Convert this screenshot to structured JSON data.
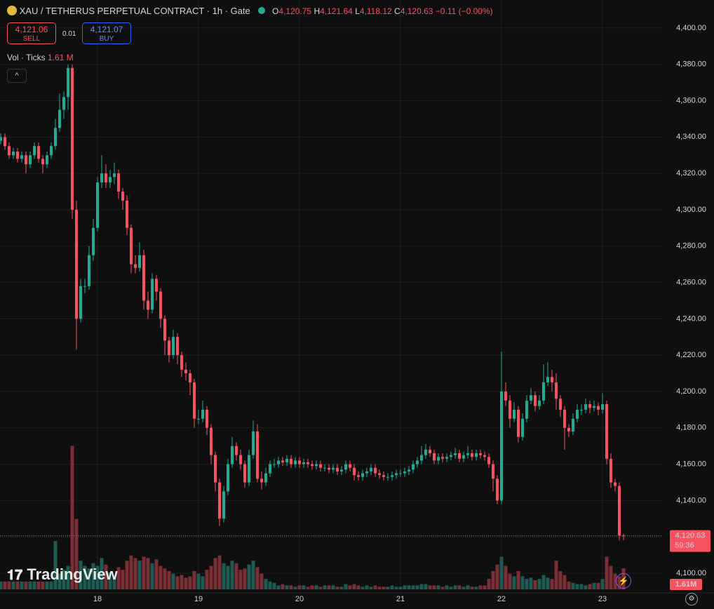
{
  "header": {
    "symbol": "XAU / TETHERUS PERPETUAL CONTRACT · 1h · Gate",
    "o_label": "O",
    "o": "4,120.75",
    "h_label": "H",
    "h": "4,121.64",
    "l_label": "L",
    "l": "4,118.12",
    "c_label": "C",
    "c": "4,120.63",
    "change": "−0.11 (−0.00%)",
    "sell_price": "4,121.06",
    "sell": "SELL",
    "spread": "0.01",
    "buy_price": "4,121.07",
    "buy": "BUY",
    "vol_label": "Vol · Ticks",
    "vol_value": "1.61 M",
    "last_price": "4,120.63",
    "countdown": "59:36",
    "last_volume": "1.61M",
    "logo": "TradingView"
  },
  "chart_data": {
    "type": "candlestick",
    "up_color": "#22ab94",
    "down_color": "#f7525f",
    "up_volume_color": "#1d5a53",
    "down_volume_color": "#7b2e33",
    "grid": true,
    "xlim": [
      -0.1667,
      157.3333
    ],
    "xticks": [
      {
        "value": 23,
        "label": "18"
      },
      {
        "value": 47,
        "label": "19"
      },
      {
        "value": 71,
        "label": "20"
      },
      {
        "value": 95,
        "label": "21"
      },
      {
        "value": 119,
        "label": "22"
      },
      {
        "value": 143,
        "label": "23"
      }
    ],
    "ylim": [
      4089.2,
      4415.4
    ],
    "yticks": [
      {
        "value": 4100,
        "label": "4,100.00"
      },
      {
        "value": 4120,
        "label": "4,120.00"
      },
      {
        "value": 4140,
        "label": "4,140.00"
      },
      {
        "value": 4160,
        "label": "4,160.00"
      },
      {
        "value": 4180,
        "label": "4,180.00"
      },
      {
        "value": 4200,
        "label": "4,200.00"
      },
      {
        "value": 4220,
        "label": "4,220.00"
      },
      {
        "value": 4240,
        "label": "4,240.00"
      },
      {
        "value": 4260,
        "label": "4,260.00"
      },
      {
        "value": 4280,
        "label": "4,280.00"
      },
      {
        "value": 4300,
        "label": "4,300.00"
      },
      {
        "value": 4320,
        "label": "4,320.00"
      },
      {
        "value": 4340,
        "label": "4,340.00"
      },
      {
        "value": 4360,
        "label": "4,360.00"
      },
      {
        "value": 4380,
        "label": "4,380.00"
      },
      {
        "value": 4400,
        "label": "4,400.00"
      }
    ],
    "ohlc": [
      [
        4338,
        4342,
        4336,
        4340
      ],
      [
        4340,
        4342,
        4333,
        4335
      ],
      [
        4335,
        4337,
        4328,
        4330
      ],
      [
        4330,
        4334,
        4328,
        4332
      ],
      [
        4332,
        4334,
        4326,
        4328
      ],
      [
        4328,
        4332,
        4326,
        4330
      ],
      [
        4330,
        4332,
        4320,
        4325
      ],
      [
        4325,
        4332,
        4323,
        4330
      ],
      [
        4330,
        4337,
        4328,
        4335
      ],
      [
        4335,
        4337,
        4326,
        4328
      ],
      [
        4328,
        4330,
        4320,
        4325
      ],
      [
        4325,
        4332,
        4323,
        4330
      ],
      [
        4330,
        4337,
        4328,
        4335
      ],
      [
        4335,
        4350,
        4333,
        4345
      ],
      [
        4345,
        4364,
        4343,
        4355
      ],
      [
        4355,
        4365,
        4350,
        4362
      ],
      [
        4362,
        4380,
        4355,
        4378
      ],
      [
        4378,
        4380,
        4295,
        4300
      ],
      [
        4300,
        4305,
        4223,
        4240
      ],
      [
        4240,
        4262,
        4238,
        4258
      ],
      [
        4258,
        4262,
        4254,
        4258
      ],
      [
        4258,
        4280,
        4256,
        4275
      ],
      [
        4275,
        4295,
        4272,
        4290
      ],
      [
        4290,
        4318,
        4288,
        4315
      ],
      [
        4315,
        4330,
        4312,
        4320
      ],
      [
        4320,
        4325,
        4312,
        4315
      ],
      [
        4315,
        4322,
        4312,
        4318
      ],
      [
        4318,
        4326,
        4314,
        4320
      ],
      [
        4320,
        4322,
        4306,
        4310
      ],
      [
        4310,
        4312,
        4300,
        4305
      ],
      [
        4305,
        4308,
        4286,
        4290
      ],
      [
        4290,
        4292,
        4265,
        4270
      ],
      [
        4270,
        4275,
        4265,
        4268
      ],
      [
        4268,
        4282,
        4266,
        4275
      ],
      [
        4275,
        4278,
        4245,
        4250
      ],
      [
        4250,
        4255,
        4240,
        4245
      ],
      [
        4245,
        4265,
        4243,
        4262
      ],
      [
        4262,
        4264,
        4250,
        4255
      ],
      [
        4255,
        4257,
        4235,
        4240
      ],
      [
        4240,
        4242,
        4220,
        4228
      ],
      [
        4228,
        4230,
        4216,
        4220
      ],
      [
        4220,
        4234,
        4218,
        4230
      ],
      [
        4230,
        4232,
        4215,
        4220
      ],
      [
        4220,
        4222,
        4208,
        4212
      ],
      [
        4212,
        4216,
        4206,
        4210
      ],
      [
        4210,
        4212,
        4198,
        4205
      ],
      [
        4205,
        4207,
        4180,
        4185
      ],
      [
        4185,
        4190,
        4182,
        4185
      ],
      [
        4185,
        4195,
        4183,
        4190
      ],
      [
        4190,
        4192,
        4176,
        4180
      ],
      [
        4180,
        4182,
        4160,
        4165
      ],
      [
        4165,
        4167,
        4145,
        4150
      ],
      [
        4150,
        4152,
        4126,
        4130
      ],
      [
        4130,
        4148,
        4128,
        4145
      ],
      [
        4145,
        4163,
        4143,
        4160
      ],
      [
        4160,
        4175,
        4158,
        4170
      ],
      [
        4170,
        4172,
        4162,
        4165
      ],
      [
        4165,
        4168,
        4157,
        4160
      ],
      [
        4160,
        4162,
        4147,
        4150
      ],
      [
        4150,
        4168,
        4148,
        4165
      ],
      [
        4165,
        4184,
        4163,
        4178
      ],
      [
        4178,
        4182,
        4150,
        4152
      ],
      [
        4152,
        4156,
        4146,
        4150
      ],
      [
        4150,
        4158,
        4148,
        4155
      ],
      [
        4155,
        4162,
        4153,
        4160
      ],
      [
        4160,
        4163,
        4158,
        4160
      ],
      [
        4160,
        4164,
        4158,
        4162
      ],
      [
        4162,
        4164,
        4159,
        4161
      ],
      [
        4161,
        4165,
        4159,
        4163
      ],
      [
        4163,
        4165,
        4158,
        4160
      ],
      [
        4160,
        4164,
        4158,
        4162
      ],
      [
        4162,
        4164,
        4158,
        4160
      ],
      [
        4160,
        4163,
        4158,
        4161
      ],
      [
        4161,
        4163,
        4158,
        4160
      ],
      [
        4160,
        4162,
        4157,
        4159
      ],
      [
        4159,
        4162,
        4157,
        4160
      ],
      [
        4160,
        4162,
        4156,
        4158
      ],
      [
        4158,
        4160,
        4156,
        4158
      ],
      [
        4158,
        4160,
        4155,
        4157
      ],
      [
        4157,
        4160,
        4155,
        4158
      ],
      [
        4158,
        4160,
        4154,
        4156
      ],
      [
        4156,
        4159,
        4154,
        4157
      ],
      [
        4157,
        4162,
        4155,
        4160
      ],
      [
        4160,
        4162,
        4156,
        4158
      ],
      [
        4158,
        4160,
        4151,
        4154
      ],
      [
        4154,
        4156,
        4151,
        4153
      ],
      [
        4153,
        4157,
        4151,
        4155
      ],
      [
        4155,
        4158,
        4153,
        4156
      ],
      [
        4156,
        4160,
        4154,
        4158
      ],
      [
        4158,
        4160,
        4153,
        4155
      ],
      [
        4155,
        4157,
        4152,
        4154
      ],
      [
        4154,
        4156,
        4151,
        4153
      ],
      [
        4153,
        4155,
        4151,
        4153
      ],
      [
        4153,
        4156,
        4151,
        4154
      ],
      [
        4154,
        4157,
        4152,
        4155
      ],
      [
        4155,
        4157,
        4153,
        4155
      ],
      [
        4155,
        4158,
        4153,
        4156
      ],
      [
        4156,
        4159,
        4154,
        4157
      ],
      [
        4157,
        4162,
        4155,
        4160
      ],
      [
        4160,
        4164,
        4158,
        4162
      ],
      [
        4162,
        4170,
        4160,
        4165
      ],
      [
        4165,
        4171,
        4163,
        4168
      ],
      [
        4168,
        4170,
        4164,
        4166
      ],
      [
        4166,
        4168,
        4160,
        4162
      ],
      [
        4162,
        4166,
        4160,
        4164
      ],
      [
        4164,
        4166,
        4161,
        4163
      ],
      [
        4163,
        4166,
        4161,
        4164
      ],
      [
        4164,
        4167,
        4162,
        4165
      ],
      [
        4165,
        4169,
        4163,
        4166
      ],
      [
        4166,
        4168,
        4161,
        4163
      ],
      [
        4163,
        4167,
        4161,
        4165
      ],
      [
        4165,
        4170,
        4163,
        4166
      ],
      [
        4166,
        4168,
        4162,
        4164
      ],
      [
        4164,
        4168,
        4162,
        4166
      ],
      [
        4166,
        4168,
        4163,
        4165
      ],
      [
        4165,
        4167,
        4162,
        4164
      ],
      [
        4164,
        4166,
        4158,
        4160
      ],
      [
        4160,
        4162,
        4145,
        4152
      ],
      [
        4152,
        4154,
        4138,
        4140
      ],
      [
        4140,
        4222,
        4138,
        4200
      ],
      [
        4200,
        4205,
        4192,
        4195
      ],
      [
        4195,
        4198,
        4180,
        4185
      ],
      [
        4185,
        4194,
        4183,
        4190
      ],
      [
        4190,
        4192,
        4172,
        4175
      ],
      [
        4175,
        4188,
        4173,
        4185
      ],
      [
        4185,
        4198,
        4183,
        4195
      ],
      [
        4195,
        4202,
        4193,
        4198
      ],
      [
        4198,
        4200,
        4189,
        4192
      ],
      [
        4192,
        4198,
        4190,
        4195
      ],
      [
        4195,
        4215,
        4193,
        4205
      ],
      [
        4205,
        4216,
        4203,
        4208
      ],
      [
        4208,
        4212,
        4200,
        4205
      ],
      [
        4205,
        4210,
        4190,
        4196
      ],
      [
        4196,
        4198,
        4186,
        4190
      ],
      [
        4190,
        4192,
        4168,
        4180
      ],
      [
        4180,
        4182,
        4175,
        4178
      ],
      [
        4178,
        4188,
        4176,
        4185
      ],
      [
        4185,
        4193,
        4183,
        4190
      ],
      [
        4190,
        4193,
        4187,
        4190
      ],
      [
        4190,
        4196,
        4188,
        4193
      ],
      [
        4193,
        4195,
        4188,
        4191
      ],
      [
        4191,
        4195,
        4189,
        4192
      ],
      [
        4192,
        4194,
        4187,
        4190
      ],
      [
        4190,
        4199,
        4188,
        4193
      ],
      [
        4193,
        4195,
        4160,
        4163
      ],
      [
        4163,
        4166,
        4147,
        4150
      ],
      [
        4150,
        4152,
        4145,
        4148
      ],
      [
        4148,
        4150,
        4118,
        4120.75
      ],
      [
        4120.75,
        4121.64,
        4118.12,
        4120.63
      ]
    ],
    "volume": [
      0.6,
      0.6,
      0.6,
      0.6,
      0.6,
      0.6,
      0.6,
      0.6,
      0.6,
      0.6,
      0.6,
      0.6,
      0.6,
      3.7,
      1.2,
      1.5,
      1.8,
      11,
      5.4,
      2.2,
      1.8,
      1.6,
      2.0,
      1.8,
      2.4,
      1.9,
      1.3,
      1.1,
      1.7,
      1.5,
      2.2,
      2.6,
      2.4,
      2.2,
      2.5,
      2.4,
      2.0,
      2.3,
      1.8,
      1.6,
      1.4,
      1.2,
      1.0,
      1.1,
      0.9,
      1.0,
      1.4,
      1.2,
      1.0,
      1.5,
      1.8,
      2.4,
      2.6,
      2.0,
      1.8,
      2.2,
      2.0,
      1.5,
      1.6,
      1.9,
      2.2,
      1.7,
      1.2,
      0.8,
      0.6,
      0.5,
      0.3,
      0.4,
      0.3,
      0.3,
      0.2,
      0.3,
      0.3,
      0.2,
      0.3,
      0.3,
      0.2,
      0.3,
      0.3,
      0.3,
      0.2,
      0.2,
      0.4,
      0.3,
      0.4,
      0.3,
      0.2,
      0.3,
      0.2,
      0.3,
      0.2,
      0.2,
      0.2,
      0.3,
      0.2,
      0.2,
      0.3,
      0.3,
      0.3,
      0.3,
      0.4,
      0.4,
      0.3,
      0.3,
      0.3,
      0.2,
      0.3,
      0.2,
      0.3,
      0.3,
      0.2,
      0.3,
      0.2,
      0.2,
      0.3,
      0.3,
      0.8,
      1.4,
      1.9,
      2.5,
      1.8,
      1.2,
      1.0,
      1.4,
      1.0,
      0.8,
      0.9,
      0.7,
      0.8,
      1.1,
      0.9,
      0.8,
      2.2,
      1.4,
      1.1,
      0.6,
      0.5,
      0.4,
      0.4,
      0.3,
      0.4,
      0.5,
      0.5,
      0.8,
      2.5,
      1.8,
      1.2,
      1.0,
      1.61
    ]
  }
}
